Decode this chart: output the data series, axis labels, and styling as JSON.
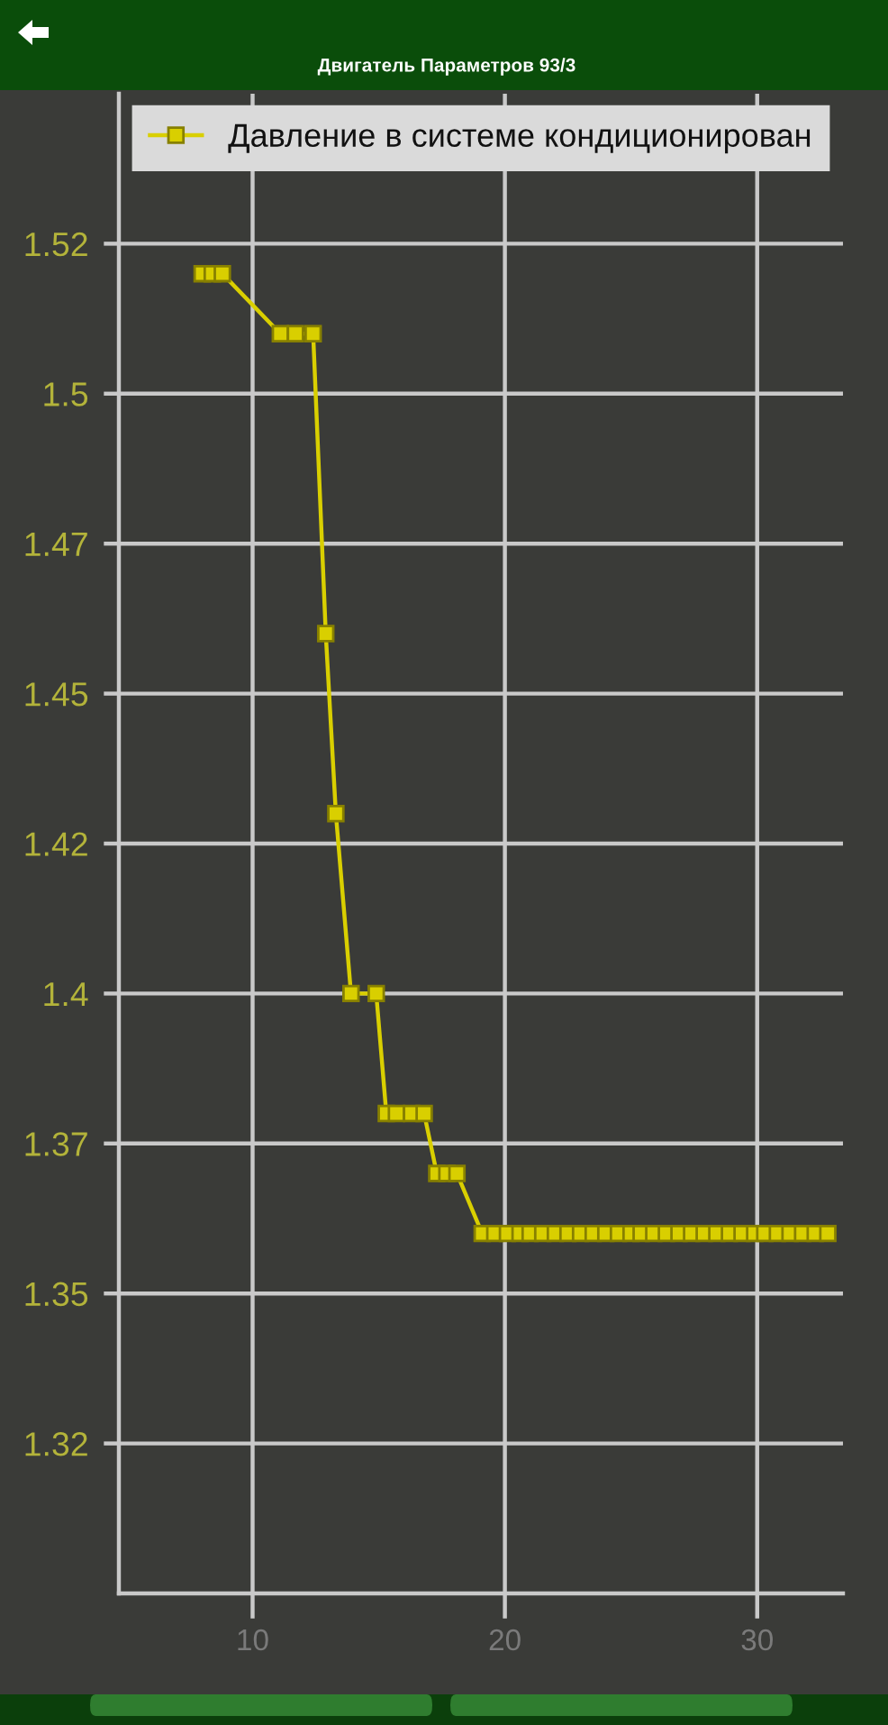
{
  "chart_data": {
    "type": "line",
    "subtitle": "Двигатель Параметров 93/3",
    "x": [
      8.0,
      8.4,
      8.8,
      11.1,
      11.7,
      12.4,
      12.9,
      13.3,
      13.9,
      14.9,
      15.3,
      15.7,
      16.3,
      16.8,
      17.3,
      17.7,
      18.1,
      19.1,
      19.6,
      20.1,
      20.6,
      21.0,
      21.5,
      22.0,
      22.5,
      23.0,
      23.5,
      24.0,
      24.5,
      25.0,
      25.4,
      25.9,
      26.4,
      26.9,
      27.4,
      27.9,
      28.4,
      28.9,
      29.4,
      29.9,
      30.3,
      30.8,
      31.3,
      31.8,
      32.3,
      32.8
    ],
    "series": [
      {
        "name": "Давление в системе кондиционирован",
        "color": "#d9cf00",
        "values": [
          1.52,
          1.52,
          1.52,
          1.51,
          1.51,
          1.51,
          1.46,
          1.43,
          1.4,
          1.4,
          1.38,
          1.38,
          1.38,
          1.38,
          1.37,
          1.37,
          1.37,
          1.36,
          1.36,
          1.36,
          1.36,
          1.36,
          1.36,
          1.36,
          1.36,
          1.36,
          1.36,
          1.36,
          1.36,
          1.36,
          1.36,
          1.36,
          1.36,
          1.36,
          1.36,
          1.36,
          1.36,
          1.36,
          1.36,
          1.36,
          1.36,
          1.36,
          1.36,
          1.36,
          1.36,
          1.36
        ]
      }
    ],
    "xlim": [
      4.7,
      33.4
    ],
    "ylim": [
      1.3,
      1.55
    ],
    "xticks": [
      10,
      20,
      30
    ],
    "yticks": [
      {
        "value": 1.325,
        "label": "1.32"
      },
      {
        "value": 1.35,
        "label": "1.35"
      },
      {
        "value": 1.375,
        "label": "1.37"
      },
      {
        "value": 1.4,
        "label": "1.4"
      },
      {
        "value": 1.425,
        "label": "1.42"
      },
      {
        "value": 1.45,
        "label": "1.45"
      },
      {
        "value": 1.475,
        "label": "1.47"
      },
      {
        "value": 1.5,
        "label": "1.5"
      },
      {
        "value": 1.525,
        "label": "1.52"
      }
    ],
    "grid": true,
    "legend": "top",
    "marker": "square",
    "line_style": "solid"
  }
}
